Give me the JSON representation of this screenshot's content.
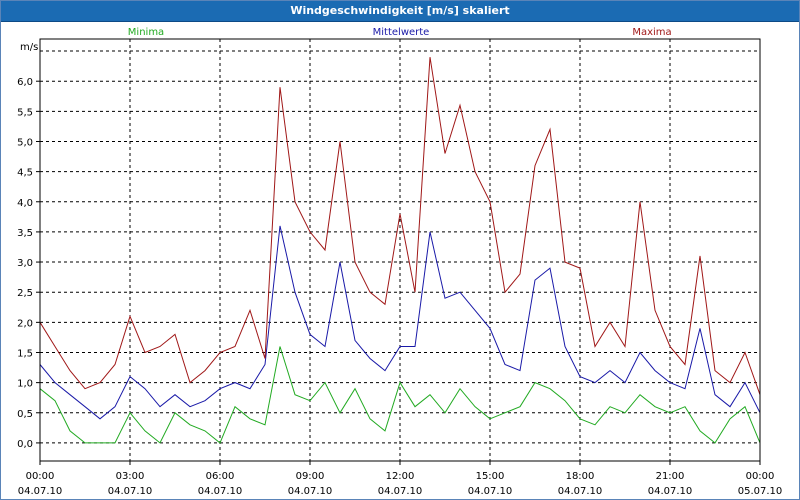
{
  "window": {
    "title": "Windgeschwindigkeit [m/s] skaliert"
  },
  "colors": {
    "minima": "#22aa22",
    "mittelwerte": "#1a1aa8",
    "maxima": "#a01818",
    "grid": "#000000"
  },
  "chart_data": {
    "type": "line",
    "title": "Windgeschwindigkeit [m/s] skaliert",
    "ylabel": "m/s",
    "xlabel": "",
    "ylim": [
      -0.3,
      6.7
    ],
    "xlim": [
      0,
      24
    ],
    "y_ticks": [
      "0,0",
      "0,5",
      "1,0",
      "1,5",
      "2,0",
      "2,5",
      "3,0",
      "3,5",
      "4,0",
      "4,5",
      "5,0",
      "5,5",
      "6,0"
    ],
    "x_ticks": [
      {
        "time": "00:00",
        "date": "04.07.10"
      },
      {
        "time": "03:00",
        "date": "04.07.10"
      },
      {
        "time": "06:00",
        "date": "04.07.10"
      },
      {
        "time": "09:00",
        "date": "04.07.10"
      },
      {
        "time": "12:00",
        "date": "04.07.10"
      },
      {
        "time": "15:00",
        "date": "04.07.10"
      },
      {
        "time": "18:00",
        "date": "04.07.10"
      },
      {
        "time": "21:00",
        "date": "04.07.10"
      },
      {
        "time": "00:00",
        "date": "05.07.10"
      }
    ],
    "grid": true,
    "legend_position": "top",
    "series": [
      {
        "name": "Minima",
        "key": "minima",
        "x": [
          0,
          0.5,
          1,
          1.5,
          2,
          2.5,
          3,
          3.5,
          4,
          4.5,
          5,
          5.5,
          6,
          6.5,
          7,
          7.5,
          8,
          8.5,
          9,
          9.5,
          10,
          10.5,
          11,
          11.5,
          12,
          12.5,
          13,
          13.5,
          14,
          14.5,
          15,
          15.5,
          16,
          16.5,
          17,
          17.5,
          18,
          18.5,
          19,
          19.5,
          20,
          20.5,
          21,
          21.5,
          22,
          22.5,
          23,
          23.5,
          24
        ],
        "values": [
          0.9,
          0.7,
          0.2,
          0.0,
          0.0,
          0.0,
          0.5,
          0.2,
          0.0,
          0.5,
          0.3,
          0.2,
          0.0,
          0.6,
          0.4,
          0.3,
          1.6,
          0.8,
          0.7,
          1.0,
          0.5,
          0.9,
          0.4,
          0.2,
          1.0,
          0.6,
          0.8,
          0.5,
          0.9,
          0.6,
          0.4,
          0.5,
          0.6,
          1.0,
          0.9,
          0.7,
          0.4,
          0.3,
          0.6,
          0.5,
          0.8,
          0.6,
          0.5,
          0.6,
          0.2,
          0.0,
          0.4,
          0.6,
          0.0
        ]
      },
      {
        "name": "Mittelwerte",
        "key": "mittelwerte",
        "x": [
          0,
          0.5,
          1,
          1.5,
          2,
          2.5,
          3,
          3.5,
          4,
          4.5,
          5,
          5.5,
          6,
          6.5,
          7,
          7.5,
          8,
          8.5,
          9,
          9.5,
          10,
          10.5,
          11,
          11.5,
          12,
          12.5,
          13,
          13.5,
          14,
          14.5,
          15,
          15.5,
          16,
          16.5,
          17,
          17.5,
          18,
          18.5,
          19,
          19.5,
          20,
          20.5,
          21,
          21.5,
          22,
          22.5,
          23,
          23.5,
          24
        ],
        "values": [
          1.3,
          1.0,
          0.8,
          0.6,
          0.4,
          0.6,
          1.1,
          0.9,
          0.6,
          0.8,
          0.6,
          0.7,
          0.9,
          1.0,
          0.9,
          1.3,
          3.6,
          2.5,
          1.8,
          1.6,
          3.0,
          1.7,
          1.4,
          1.2,
          1.6,
          1.6,
          3.5,
          2.4,
          2.5,
          2.2,
          1.9,
          1.3,
          1.2,
          2.7,
          2.9,
          1.6,
          1.1,
          1.0,
          1.2,
          1.0,
          1.5,
          1.2,
          1.0,
          0.9,
          1.9,
          0.8,
          0.6,
          1.0,
          0.5
        ]
      },
      {
        "name": "Maxima",
        "key": "maxima",
        "x": [
          0,
          0.5,
          1,
          1.5,
          2,
          2.5,
          3,
          3.5,
          4,
          4.5,
          5,
          5.5,
          6,
          6.5,
          7,
          7.5,
          8,
          8.5,
          9,
          9.5,
          10,
          10.5,
          11,
          11.5,
          12,
          12.5,
          13,
          13.5,
          14,
          14.5,
          15,
          15.5,
          16,
          16.5,
          17,
          17.5,
          18,
          18.5,
          19,
          19.5,
          20,
          20.5,
          21,
          21.5,
          22,
          22.5,
          23,
          23.5,
          24
        ],
        "values": [
          2.0,
          1.6,
          1.2,
          0.9,
          1.0,
          1.3,
          2.1,
          1.5,
          1.6,
          1.8,
          1.0,
          1.2,
          1.5,
          1.6,
          2.2,
          1.4,
          5.9,
          4.0,
          3.5,
          3.2,
          5.0,
          3.0,
          2.5,
          2.3,
          3.8,
          2.5,
          6.4,
          4.8,
          5.6,
          4.5,
          4.0,
          2.5,
          2.8,
          4.6,
          5.2,
          3.0,
          2.9,
          1.6,
          2.0,
          1.6,
          4.0,
          2.2,
          1.6,
          1.3,
          3.1,
          1.2,
          1.0,
          1.5,
          0.8
        ]
      }
    ]
  }
}
